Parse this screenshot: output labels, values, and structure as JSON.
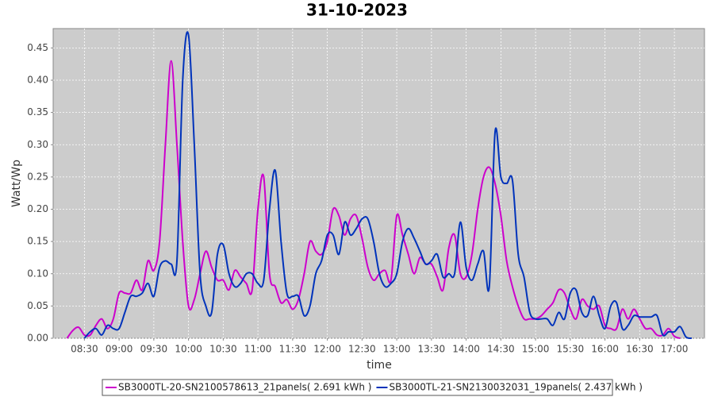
{
  "chart_data": {
    "type": "line",
    "title": "31-10-2023",
    "x_label": "time",
    "y_label": "Watt/Wp",
    "x": [
      495,
      500,
      505,
      510,
      515,
      520,
      525,
      530,
      535,
      540,
      545,
      550,
      555,
      560,
      565,
      570,
      575,
      580,
      585,
      590,
      595,
      600,
      605,
      610,
      615,
      620,
      625,
      630,
      635,
      640,
      645,
      650,
      655,
      660,
      665,
      670,
      675,
      680,
      685,
      690,
      695,
      700,
      705,
      710,
      715,
      720,
      725,
      730,
      735,
      740,
      745,
      750,
      755,
      760,
      765,
      770,
      775,
      780,
      785,
      790,
      795,
      800,
      805,
      810,
      815,
      820,
      825,
      830,
      835,
      840,
      845,
      850,
      855,
      860,
      865,
      870,
      875,
      880,
      885,
      890,
      895,
      900,
      905,
      910,
      915,
      920,
      925,
      930,
      935,
      940,
      945,
      950,
      955,
      960,
      965,
      970,
      975,
      980,
      985,
      990,
      995,
      1000,
      1005,
      1010,
      1015,
      1020,
      1025,
      1030,
      1035
    ],
    "series": [
      {
        "name": "SB3000TL-20-SN2100578613_21panels( 2.691 kWh )",
        "color": "#cc00cc",
        "values": [
          0,
          0.012,
          0.017,
          0.005,
          0.005,
          0.02,
          0.03,
          0.015,
          0.03,
          0.07,
          0.07,
          0.07,
          0.09,
          0.075,
          0.12,
          0.105,
          0.15,
          0.3,
          0.43,
          0.3,
          0.15,
          0.05,
          0.06,
          0.1,
          0.135,
          0.11,
          0.09,
          0.09,
          0.075,
          0.105,
          0.095,
          0.085,
          0.075,
          0.2,
          0.25,
          0.1,
          0.08,
          0.055,
          0.06,
          0.045,
          0.06,
          0.1,
          0.15,
          0.135,
          0.13,
          0.15,
          0.2,
          0.19,
          0.16,
          0.185,
          0.19,
          0.155,
          0.11,
          0.09,
          0.1,
          0.105,
          0.09,
          0.19,
          0.16,
          0.13,
          0.1,
          0.125,
          0.115,
          0.115,
          0.095,
          0.075,
          0.14,
          0.16,
          0.1,
          0.095,
          0.13,
          0.2,
          0.25,
          0.265,
          0.24,
          0.19,
          0.12,
          0.08,
          0.05,
          0.03,
          0.03,
          0.03,
          0.035,
          0.045,
          0.055,
          0.075,
          0.07,
          0.045,
          0.03,
          0.06,
          0.05,
          0.045,
          0.05,
          0.02,
          0.015,
          0.015,
          0.045,
          0.03,
          0.045,
          0.03,
          0.015,
          0.015,
          0.005,
          0.005,
          0.015,
          0.003,
          0,
          null,
          null
        ]
      },
      {
        "name": "SB3000TL-21-SN2130032031_19panels( 2.437 kWh )",
        "color": "#0033bb",
        "values": [
          null,
          null,
          null,
          0,
          0.01,
          0.015,
          0.005,
          0.02,
          0.015,
          0.015,
          0.04,
          0.065,
          0.065,
          0.07,
          0.085,
          0.065,
          0.11,
          0.12,
          0.115,
          0.12,
          0.4,
          0.47,
          0.3,
          0.1,
          0.05,
          0.04,
          0.13,
          0.145,
          0.1,
          0.08,
          0.085,
          0.1,
          0.1,
          0.085,
          0.09,
          0.2,
          0.26,
          0.15,
          0.07,
          0.065,
          0.065,
          0.035,
          0.05,
          0.1,
          0.12,
          0.16,
          0.16,
          0.13,
          0.18,
          0.16,
          0.17,
          0.185,
          0.185,
          0.15,
          0.1,
          0.08,
          0.085,
          0.1,
          0.15,
          0.17,
          0.155,
          0.135,
          0.115,
          0.12,
          0.13,
          0.095,
          0.1,
          0.1,
          0.18,
          0.11,
          0.09,
          0.115,
          0.135,
          0.08,
          0.32,
          0.25,
          0.24,
          0.245,
          0.13,
          0.095,
          0.04,
          0.03,
          0.03,
          0.03,
          0.02,
          0.04,
          0.03,
          0.07,
          0.075,
          0.04,
          0.035,
          0.065,
          0.035,
          0.015,
          0.05,
          0.055,
          0.015,
          0.02,
          0.035,
          0.033,
          0.033,
          0.033,
          0.035,
          0.005,
          0.01,
          0.01,
          0.018,
          0.002,
          0
        ]
      }
    ],
    "xlim": [
      483,
      1046
    ],
    "xticks": [
      {
        "value": 510,
        "label": "08:30"
      },
      {
        "value": 540,
        "label": "09:00"
      },
      {
        "value": 570,
        "label": "09:30"
      },
      {
        "value": 600,
        "label": "10:00"
      },
      {
        "value": 630,
        "label": "10:30"
      },
      {
        "value": 660,
        "label": "11:00"
      },
      {
        "value": 690,
        "label": "11:30"
      },
      {
        "value": 720,
        "label": "12:00"
      },
      {
        "value": 750,
        "label": "12:30"
      },
      {
        "value": 780,
        "label": "13:00"
      },
      {
        "value": 810,
        "label": "13:30"
      },
      {
        "value": 840,
        "label": "14:00"
      },
      {
        "value": 870,
        "label": "14:30"
      },
      {
        "value": 900,
        "label": "15:00"
      },
      {
        "value": 930,
        "label": "15:30"
      },
      {
        "value": 960,
        "label": "16:00"
      },
      {
        "value": 990,
        "label": "16:30"
      },
      {
        "value": 1020,
        "label": "17:00"
      }
    ],
    "ylim": [
      0,
      0.48
    ],
    "yticks": [
      {
        "value": 0,
        "label": "0.00"
      },
      {
        "value": 0.05,
        "label": "0.05"
      },
      {
        "value": 0.1,
        "label": "0.10"
      },
      {
        "value": 0.15,
        "label": "0.15"
      },
      {
        "value": 0.2,
        "label": "0.20"
      },
      {
        "value": 0.25,
        "label": "0.25"
      },
      {
        "value": 0.3,
        "label": "0.30"
      },
      {
        "value": 0.35,
        "label": "0.35"
      },
      {
        "value": 0.4,
        "label": "0.40"
      },
      {
        "value": 0.45,
        "label": "0.45"
      }
    ],
    "grid": true
  }
}
